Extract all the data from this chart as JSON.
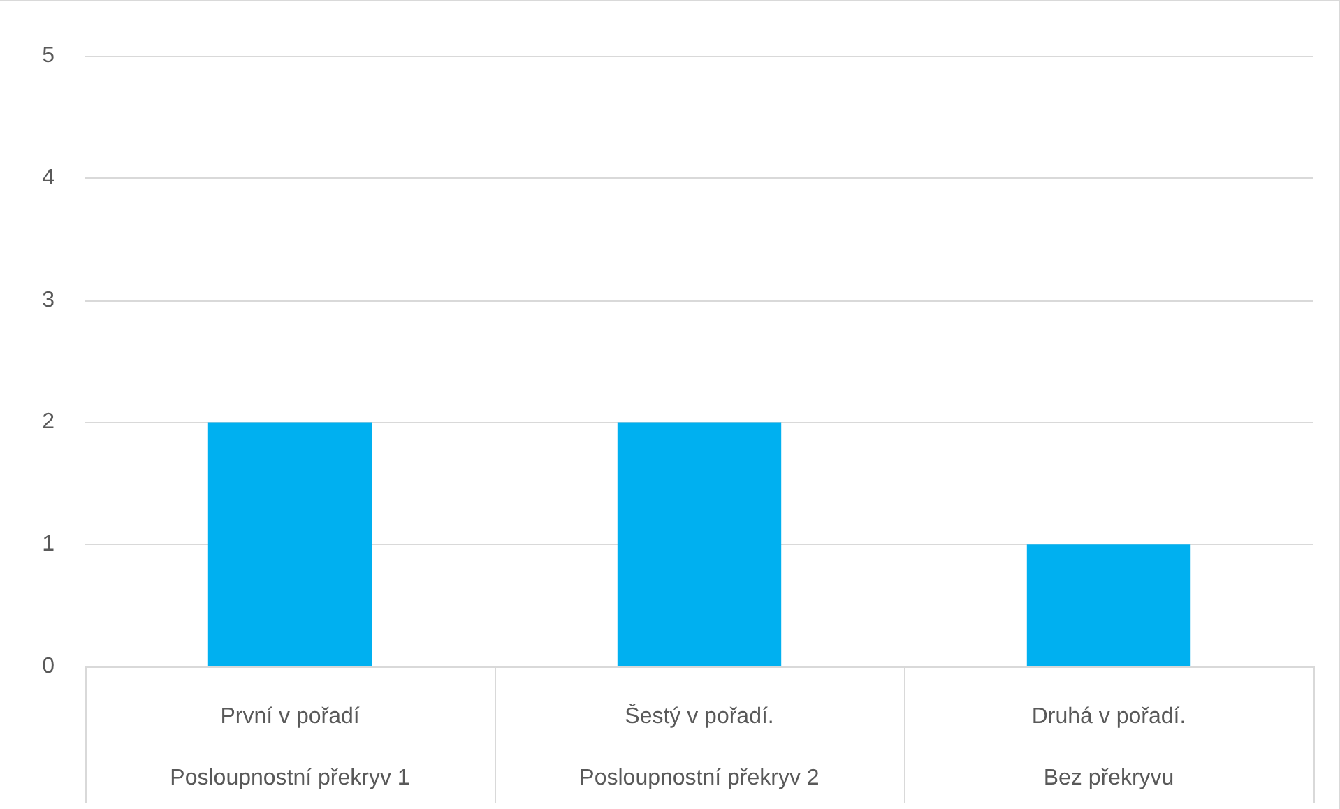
{
  "chart_data": {
    "type": "bar",
    "categories": [
      "První v pořadí\nPosloupnostní překryv 1",
      "Šestý v pořadí.\nPosloupnostní překryv 2",
      "Druhá v pořadí.\nBez překryvu"
    ],
    "values": [
      2,
      2,
      1
    ],
    "color": "#00b0f0",
    "ylim": [
      0,
      5
    ],
    "yticks": [
      0,
      1,
      2,
      3,
      4,
      5
    ],
    "grid": "y"
  }
}
